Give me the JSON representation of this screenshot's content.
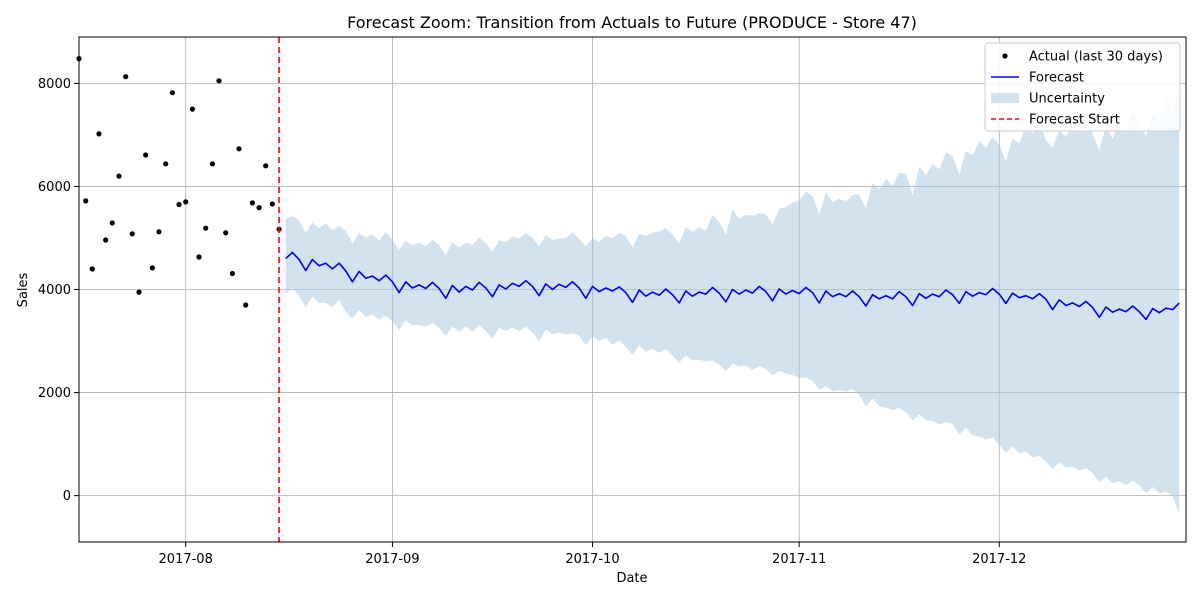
{
  "chart_data": {
    "type": "line",
    "title": "Forecast Zoom: Transition from Actuals to Future (PRODUCE - Store 47)",
    "xlabel": "Date",
    "ylabel": "Sales",
    "xlim": [
      "2017-07-16",
      "2017-12-29"
    ],
    "ylim": [
      -900,
      8900
    ],
    "grid": true,
    "legend_position": "top-right",
    "x_ticks": [
      "2017-08",
      "2017-09",
      "2017-10",
      "2017-11",
      "2017-12"
    ],
    "y_ticks": [
      0,
      2000,
      4000,
      6000,
      8000
    ],
    "forecast_start": "2017-08-15",
    "colors": {
      "actual": "#000000",
      "forecast": "#0000ff",
      "uncertainty": "#a6c8e0",
      "forecast_start": "#ff0000",
      "grid": "#b0b0b0"
    },
    "legend": [
      {
        "label": "Actual (last 30 days)",
        "kind": "marker"
      },
      {
        "label": "Forecast",
        "kind": "line"
      },
      {
        "label": "Uncertainty",
        "kind": "patch"
      },
      {
        "label": "Forecast Start",
        "kind": "dashed"
      }
    ],
    "series": [
      {
        "name": "Actual (last 30 days)",
        "points": [
          [
            "2017-07-16",
            8480
          ],
          [
            "2017-07-17",
            5720
          ],
          [
            "2017-07-18",
            4400
          ],
          [
            "2017-07-19",
            7020
          ],
          [
            "2017-07-20",
            4960
          ],
          [
            "2017-07-21",
            5290
          ],
          [
            "2017-07-22",
            6200
          ],
          [
            "2017-07-23",
            8130
          ],
          [
            "2017-07-24",
            5080
          ],
          [
            "2017-07-25",
            3950
          ],
          [
            "2017-07-26",
            6610
          ],
          [
            "2017-07-27",
            4420
          ],
          [
            "2017-07-28",
            5120
          ],
          [
            "2017-07-29",
            6440
          ],
          [
            "2017-07-30",
            7820
          ],
          [
            "2017-07-31",
            5650
          ],
          [
            "2017-08-01",
            5700
          ],
          [
            "2017-08-02",
            7500
          ],
          [
            "2017-08-03",
            4630
          ],
          [
            "2017-08-04",
            5190
          ],
          [
            "2017-08-05",
            6440
          ],
          [
            "2017-08-06",
            8050
          ],
          [
            "2017-08-07",
            5100
          ],
          [
            "2017-08-08",
            4310
          ],
          [
            "2017-08-09",
            6730
          ],
          [
            "2017-08-10",
            3700
          ],
          [
            "2017-08-11",
            5680
          ],
          [
            "2017-08-12",
            5590
          ],
          [
            "2017-08-13",
            6400
          ],
          [
            "2017-08-14",
            5660
          ],
          [
            "2017-08-15",
            5170
          ]
        ]
      },
      {
        "name": "Forecast",
        "start": "2017-08-16",
        "values": [
          4600,
          4720,
          4580,
          4370,
          4580,
          4460,
          4510,
          4400,
          4510,
          4360,
          4150,
          4350,
          4220,
          4260,
          4170,
          4280,
          4150,
          3940,
          4150,
          4030,
          4090,
          4020,
          4140,
          4020,
          3830,
          4080,
          3950,
          4060,
          3990,
          4140,
          4030,
          3860,
          4090,
          4010,
          4120,
          4060,
          4170,
          4060,
          3880,
          4110,
          4000,
          4100,
          4040,
          4150,
          4030,
          3830,
          4060,
          3960,
          4030,
          3970,
          4050,
          3940,
          3750,
          3990,
          3870,
          3950,
          3890,
          4010,
          3900,
          3740,
          3970,
          3870,
          3950,
          3910,
          4040,
          3930,
          3760,
          4000,
          3910,
          3990,
          3930,
          4060,
          3960,
          3780,
          4010,
          3910,
          3980,
          3920,
          4040,
          3940,
          3740,
          3970,
          3860,
          3920,
          3860,
          3970,
          3860,
          3680,
          3900,
          3820,
          3880,
          3820,
          3960,
          3860,
          3690,
          3920,
          3830,
          3910,
          3860,
          3990,
          3900,
          3730,
          3960,
          3870,
          3940,
          3900,
          4020,
          3910,
          3730,
          3930,
          3840,
          3880,
          3820,
          3920,
          3810,
          3610,
          3800,
          3690,
          3740,
          3670,
          3770,
          3650,
          3460,
          3660,
          3560,
          3620,
          3570,
          3680,
          3570,
          3420,
          3630,
          3550,
          3640,
          3610,
          3740
        ]
      }
    ],
    "uncertainty_band": {
      "start": "2017-08-16",
      "upper": [
        5380,
        5420,
        5340,
        5110,
        5300,
        5190,
        5280,
        5150,
        5240,
        5140,
        4890,
        5100,
        5010,
        5070,
        4950,
        5110,
        4960,
        4770,
        4950,
        4860,
        4910,
        4840,
        4970,
        4860,
        4660,
        4920,
        4810,
        4910,
        4870,
        5010,
        4900,
        4730,
        4960,
        4920,
        5030,
        4990,
        5100,
        5000,
        4840,
        5060,
        4960,
        4990,
        4990,
        5110,
        4990,
        4830,
        5000,
        4920,
        5040,
        5000,
        5100,
        5040,
        4810,
        5080,
        5040,
        5100,
        5120,
        5190,
        5070,
        4890,
        5210,
        5120,
        5210,
        5140,
        5450,
        5310,
        5060,
        5560,
        5370,
        5450,
        5430,
        5480,
        5470,
        5260,
        5570,
        5600,
        5690,
        5730,
        5900,
        5810,
        5450,
        5890,
        5690,
        5760,
        5710,
        5840,
        5840,
        5580,
        6070,
        5940,
        6150,
        6010,
        6270,
        6250,
        5830,
        6380,
        6220,
        6440,
        6330,
        6660,
        6590,
        6230,
        6690,
        6600,
        6890,
        6740,
        6970,
        6800,
        6490,
        6940,
        6830,
        7180,
        7030,
        7250,
        6900,
        6740,
        7100,
        6960,
        7240,
        7090,
        7320,
        7020,
        6690,
        7180,
        6920,
        7240,
        7070,
        7430,
        7220,
        6970,
        7500,
        7290,
        7710,
        7500,
        8050
      ],
      "lower": [
        3920,
        4030,
        3870,
        3650,
        3870,
        3740,
        3740,
        3650,
        3800,
        3570,
        3430,
        3600,
        3460,
        3520,
        3410,
        3490,
        3380,
        3220,
        3400,
        3310,
        3310,
        3280,
        3350,
        3260,
        3090,
        3280,
        3180,
        3280,
        3180,
        3310,
        3200,
        3040,
        3260,
        3190,
        3270,
        3190,
        3280,
        3160,
        2990,
        3230,
        3130,
        3160,
        3130,
        3150,
        3100,
        2920,
        3090,
        3000,
        3060,
        2930,
        3010,
        2890,
        2730,
        2920,
        2790,
        2850,
        2770,
        2840,
        2720,
        2580,
        2720,
        2630,
        2640,
        2600,
        2620,
        2540,
        2420,
        2560,
        2510,
        2520,
        2440,
        2510,
        2460,
        2330,
        2420,
        2370,
        2340,
        2280,
        2290,
        2230,
        2050,
        2120,
        2030,
        2050,
        2020,
        2070,
        1960,
        1730,
        1880,
        1730,
        1710,
        1660,
        1700,
        1620,
        1460,
        1580,
        1460,
        1450,
        1380,
        1430,
        1390,
        1180,
        1320,
        1170,
        1150,
        1090,
        1130,
        990,
        830,
        960,
        810,
        860,
        740,
        770,
        660,
        510,
        650,
        540,
        560,
        490,
        530,
        440,
        260,
        370,
        240,
        280,
        200,
        290,
        200,
        40,
        170,
        40,
        80,
        0,
        -360
      ]
    }
  }
}
